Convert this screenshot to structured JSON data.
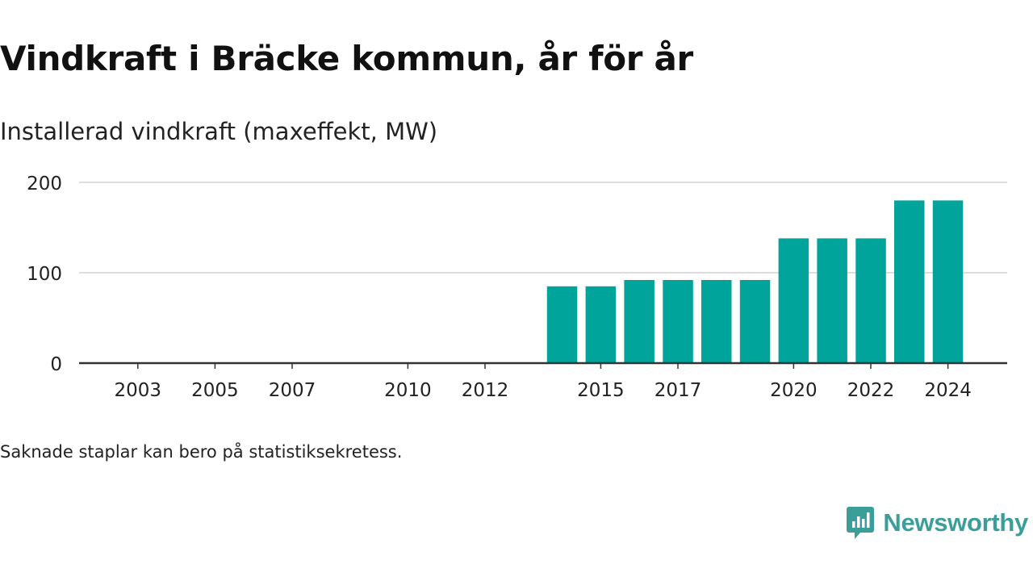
{
  "title": "Vindkraft i Bräcke kommun, år för år",
  "subtitle": "Installerad vindkraft (maxeffekt, MW)",
  "note": "Saknade staplar kan bero på statistiksekretess.",
  "brand": {
    "name": "Newsworthy",
    "icon": "newsworthy-logo-icon"
  },
  "colors": {
    "bar": "#00a49a",
    "text": "#111111",
    "grid": "#dddddd",
    "axis": "#333333",
    "brand": "#3c9e98"
  },
  "chart_data": {
    "type": "bar",
    "title": "Vindkraft i Bräcke kommun, år för år",
    "ylabel": "Installerad vindkraft (maxeffekt, MW)",
    "xlabel": "",
    "categories": [
      2002,
      2003,
      2004,
      2005,
      2006,
      2007,
      2008,
      2009,
      2010,
      2011,
      2012,
      2013,
      2014,
      2015,
      2016,
      2017,
      2018,
      2019,
      2020,
      2021,
      2022,
      2023,
      2024
    ],
    "values": [
      0,
      0,
      0,
      0,
      0,
      0,
      0,
      0,
      0,
      0,
      0,
      0,
      85,
      85,
      92,
      92,
      92,
      92,
      138,
      138,
      138,
      180,
      180
    ],
    "xticks": [
      2003,
      2005,
      2007,
      2010,
      2012,
      2015,
      2017,
      2020,
      2022,
      2024
    ],
    "yticks": [
      0,
      100,
      200
    ],
    "ylim": [
      0,
      200
    ],
    "grid": true,
    "legend": "none"
  }
}
